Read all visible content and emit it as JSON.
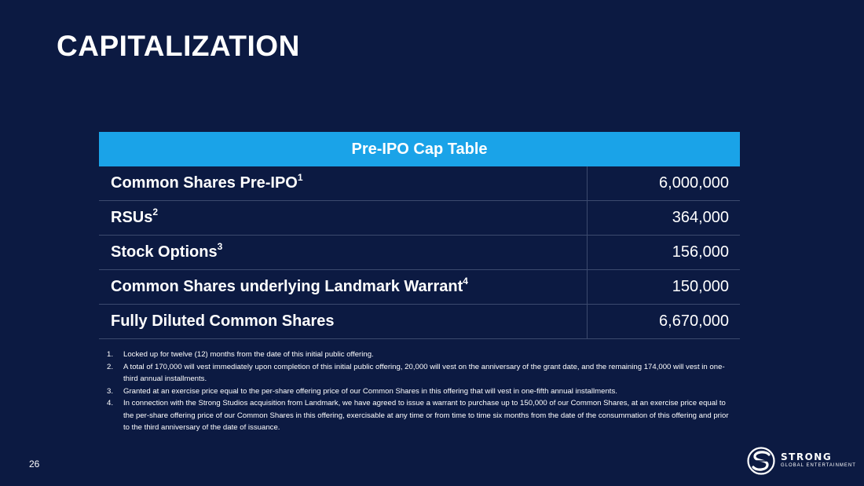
{
  "page": {
    "title": "CAPITALIZATION",
    "number": "26"
  },
  "table": {
    "header": "Pre-IPO Cap Table",
    "rows": [
      {
        "label": "Common Shares Pre-IPO",
        "note": "1",
        "value": "6,000,000"
      },
      {
        "label": "RSUs",
        "note": "2",
        "value": "364,000"
      },
      {
        "label": "Stock Options",
        "note": "3",
        "value": "156,000"
      },
      {
        "label": "Common Shares underlying Landmark Warrant",
        "note": "4",
        "value": "150,000"
      },
      {
        "label": "Fully Diluted Common Shares",
        "note": "",
        "value": "6,670,000"
      }
    ]
  },
  "footnotes": [
    {
      "num": "1.",
      "text": "Locked up for twelve (12) months from the date of this initial public offering."
    },
    {
      "num": "2.",
      "text": "A total of 170,000 will vest immediately upon completion of this initial public offering, 20,000 will vest on the anniversary of the grant date, and the remaining 174,000 will vest in one-third annual installments."
    },
    {
      "num": "3.",
      "text": "Granted at an exercise price equal to the per-share offering price of our Common Shares in this offering that will vest in one-fifth annual installments."
    },
    {
      "num": "4.",
      "text": "In connection with the Strong Studios acquisition from Landmark, we have agreed to issue a warrant to purchase up to 150,000 of our Common Shares, at an exercise price equal to the per-share offering price of our Common Shares in this offering, exercisable at any time or from time to time six months from the date of the consummation of this offering and prior to the third anniversary of the date of issuance."
    }
  ],
  "logo": {
    "name": "STRONG",
    "subtitle": "GLOBAL ENTERTAINMENT",
    "icon": "globe-s-icon"
  },
  "colors": {
    "background": "#0c1a42",
    "header": "#1aa3e8",
    "divider": "#3c4a6e"
  }
}
